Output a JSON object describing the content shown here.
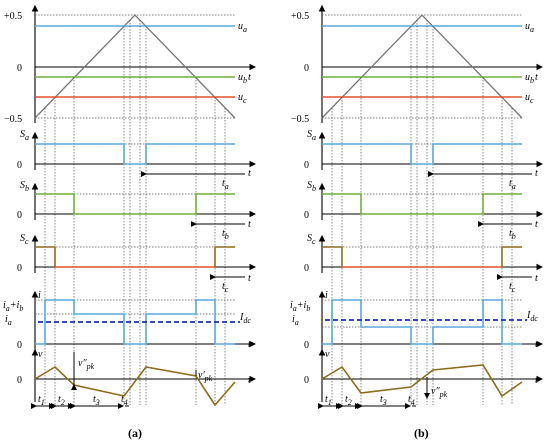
{
  "labels": {
    "plus_half": "+0.5",
    "zero": "0",
    "minus_half": "−0.5",
    "ua": "u",
    "ua_sub": "a",
    "ub": "u",
    "ub_sub": "b",
    "uc": "u",
    "uc_sub": "c",
    "t": "t",
    "Sa": "S",
    "Sa_sub": "a",
    "Sb": "S",
    "Sb_sub": "b",
    "Sc": "S",
    "Sc_sub": "c",
    "ta": "t",
    "ta_sub": "a",
    "tb": "t",
    "tb_sub": "b",
    "tc": "t",
    "tc_sub": "c",
    "i": "i",
    "iab": "i",
    "iab_a": "a",
    "iab_plus": "+",
    "iab_b": "i",
    "iab_b_sub": "b",
    "ia": "i",
    "ia_sub": "a",
    "Idc": "I",
    "Idc_sub": "dc",
    "v": "v",
    "vpk": "v″",
    "vpk_sub": "pk",
    "vpk2": "v′",
    "vpk2_sub": "pk",
    "t1": "t",
    "t1_sub": "1",
    "t2": "t",
    "t2_sub": "2",
    "t3": "t",
    "t3_sub": "3",
    "t4": "t",
    "t4_sub": "4",
    "cap_a": "(a)",
    "cap_b": "(b)"
  }
}
